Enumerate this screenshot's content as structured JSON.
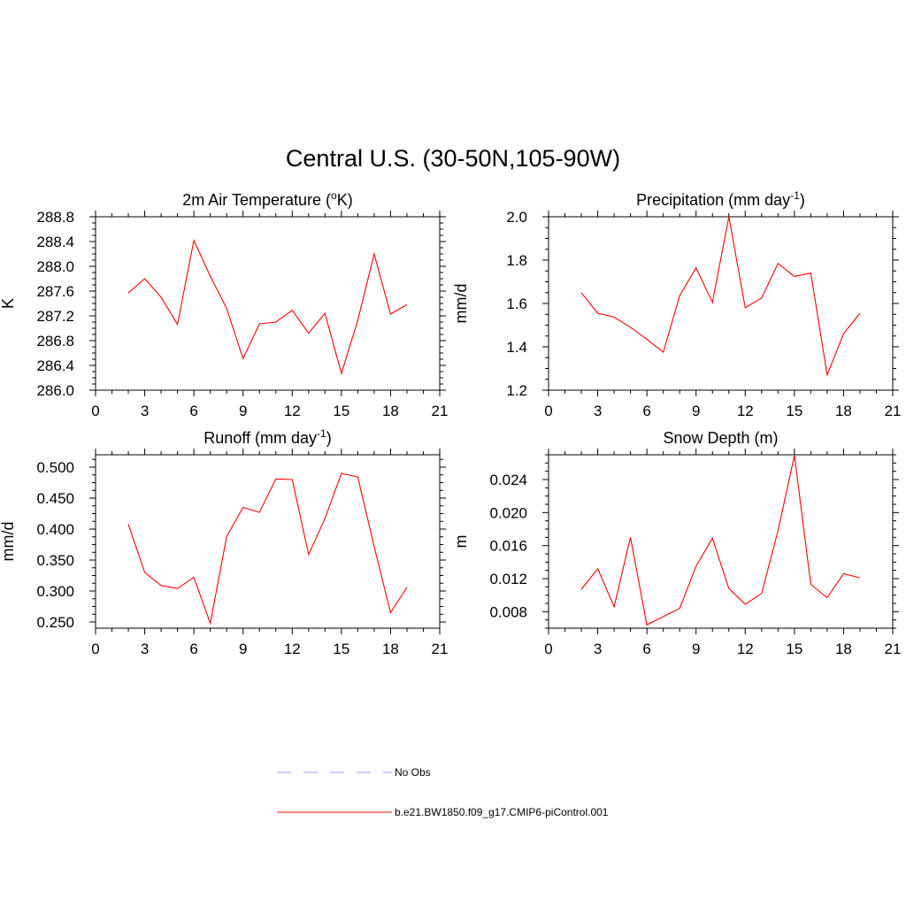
{
  "title": "Central U.S. (30-50N,105-90W)",
  "legend": [
    {
      "label": "No Obs",
      "color": "#b0b0ff",
      "style": "dashed"
    },
    {
      "label": "b.e21.BW1850.f09_g17.CMIP6-piControl.001",
      "color": "#ff0000",
      "style": "solid"
    }
  ],
  "chart_data": [
    {
      "type": "line",
      "title": "2m Air Temperature (",
      "title_sup": "o",
      "title_tail": "K)",
      "ylabel": "K",
      "xlim": [
        0,
        21
      ],
      "ylim": [
        286.0,
        288.8
      ],
      "xticks": [
        0,
        3,
        6,
        9,
        12,
        15,
        18,
        21
      ],
      "yticks": [
        286.0,
        286.4,
        286.8,
        287.2,
        287.6,
        288.0,
        288.4,
        288.8
      ],
      "yticklabels": [
        "286.0",
        "286.4",
        "286.8",
        "287.2",
        "287.6",
        "288.0",
        "288.4",
        "288.8"
      ],
      "x": [
        2,
        3,
        4,
        5,
        6,
        7,
        8,
        9,
        10,
        11,
        12,
        13,
        14,
        15,
        16,
        17,
        18,
        19
      ],
      "series": [
        {
          "color": "#ff0000",
          "values": [
            287.57,
            287.8,
            287.5,
            287.06,
            288.42,
            287.84,
            287.32,
            286.51,
            287.07,
            287.1,
            287.29,
            286.92,
            287.24,
            286.27,
            287.13,
            288.2,
            287.23,
            287.38
          ]
        }
      ]
    },
    {
      "type": "line",
      "title": "Precipitation (mm day",
      "title_sup": "-1",
      "title_tail": ")",
      "ylabel": "mm/d",
      "xlim": [
        0,
        21
      ],
      "ylim": [
        1.2,
        2.0
      ],
      "xticks": [
        0,
        3,
        6,
        9,
        12,
        15,
        18,
        21
      ],
      "yticks": [
        1.2,
        1.4,
        1.6,
        1.8,
        2.0
      ],
      "yticklabels": [
        "1.2",
        "1.4",
        "1.6",
        "1.8",
        "2.0"
      ],
      "x": [
        2,
        3,
        4,
        5,
        6,
        7,
        8,
        9,
        10,
        11,
        12,
        13,
        14,
        15,
        16,
        17,
        18,
        19
      ],
      "series": [
        {
          "color": "#ff0000",
          "values": [
            1.65,
            1.555,
            1.537,
            1.49,
            1.435,
            1.375,
            1.635,
            1.765,
            1.605,
            2.0,
            1.58,
            1.625,
            1.785,
            1.725,
            1.74,
            1.27,
            1.46,
            1.555
          ]
        }
      ]
    },
    {
      "type": "line",
      "title": "Runoff (mm day",
      "title_sup": "-1",
      "title_tail": ")",
      "ylabel": "mm/d",
      "xlim": [
        0,
        21
      ],
      "ylim": [
        0.24,
        0.52
      ],
      "xticks": [
        0,
        3,
        6,
        9,
        12,
        15,
        18,
        21
      ],
      "yticks": [
        0.25,
        0.3,
        0.35,
        0.4,
        0.45,
        0.5
      ],
      "yticklabels": [
        "0.250",
        "0.300",
        "0.350",
        "0.400",
        "0.450",
        "0.500"
      ],
      "x": [
        2,
        3,
        4,
        5,
        6,
        7,
        8,
        9,
        10,
        11,
        12,
        13,
        14,
        15,
        16,
        17,
        18,
        19
      ],
      "series": [
        {
          "color": "#ff0000",
          "values": [
            0.408,
            0.33,
            0.309,
            0.304,
            0.322,
            0.248,
            0.388,
            0.435,
            0.427,
            0.481,
            0.48,
            0.359,
            0.417,
            0.49,
            0.484,
            0.372,
            0.265,
            0.306
          ]
        }
      ]
    },
    {
      "type": "line",
      "title": "Snow Depth (m)",
      "title_sup": "",
      "title_tail": "",
      "ylabel": "m",
      "xlim": [
        0,
        21
      ],
      "ylim": [
        0.006,
        0.027
      ],
      "xticks": [
        0,
        3,
        6,
        9,
        12,
        15,
        18,
        21
      ],
      "yticks": [
        0.008,
        0.012,
        0.016,
        0.02,
        0.024
      ],
      "yticklabels": [
        "0.008",
        "0.012",
        "0.016",
        "0.020",
        "0.024"
      ],
      "x": [
        2,
        3,
        4,
        5,
        6,
        7,
        8,
        9,
        10,
        11,
        12,
        13,
        14,
        15,
        16,
        17,
        18,
        19
      ],
      "series": [
        {
          "color": "#ff0000",
          "values": [
            0.0107,
            0.0132,
            0.0086,
            0.017,
            0.0064,
            0.0074,
            0.0084,
            0.0135,
            0.0169,
            0.0108,
            0.0089,
            0.0102,
            0.0178,
            0.0269,
            0.0113,
            0.0097,
            0.0126,
            0.0121
          ]
        }
      ]
    }
  ]
}
